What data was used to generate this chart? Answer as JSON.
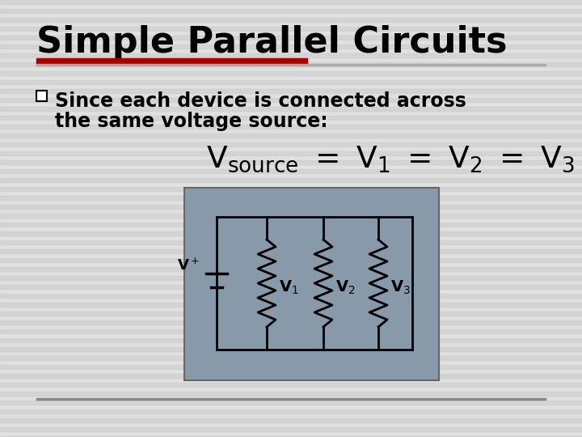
{
  "title": "Simple Parallel Circuits",
  "title_fontsize": 32,
  "title_color": "#000000",
  "bg_color": "#e0e0e0",
  "red_bar_color": "#aa0000",
  "bullet_text_line1": "Since each device is connected across",
  "bullet_text_line2": "the same voltage source:",
  "circuit_bg": "#8899aa",
  "stripe_color": "#cccccc",
  "wire_color": "#000000",
  "label_color": "#000000"
}
